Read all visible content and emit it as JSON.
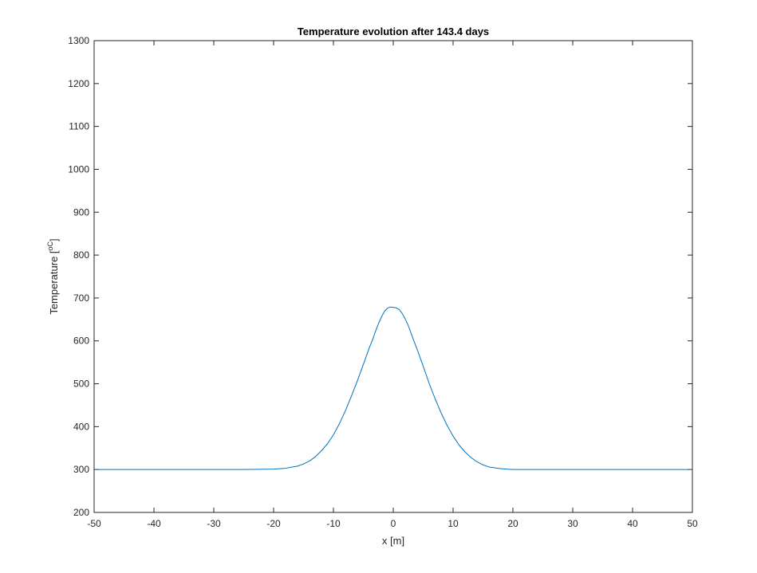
{
  "chart_data": {
    "type": "line",
    "title": "Temperature evolution after 143.4 days",
    "xlabel": "x [m]",
    "ylabel": "Temperature  [",
    "ylabel_unit_sup": "oC",
    "ylabel_close": "]",
    "xlim": [
      -50,
      50
    ],
    "ylim": [
      200,
      1300
    ],
    "xticks": [
      -50,
      -40,
      -30,
      -20,
      -10,
      0,
      10,
      20,
      30,
      40,
      50
    ],
    "yticks": [
      200,
      300,
      400,
      500,
      600,
      700,
      800,
      900,
      1000,
      1100,
      1200,
      1300
    ],
    "grid": false,
    "line_color": "#0072BD",
    "series": [
      {
        "x": [
          -50,
          -40,
          -30,
          -25,
          -20,
          -18,
          -16,
          -15,
          -14,
          -13,
          -12,
          -11,
          -10,
          -9,
          -8,
          -7,
          -6,
          -5,
          -4,
          -3.5,
          -3,
          -2.5,
          -2,
          -1.5,
          -1,
          -0.5,
          0,
          0.5,
          1,
          1.5,
          2,
          2.5,
          3,
          3.5,
          4,
          5,
          6,
          7,
          8,
          9,
          10,
          11,
          12,
          13,
          14,
          15,
          16,
          18,
          20,
          25,
          30,
          40,
          50
        ],
        "y": [
          300,
          300,
          300,
          300,
          301,
          303,
          308,
          313,
          320,
          330,
          344,
          360,
          381,
          407,
          437,
          471,
          507,
          545,
          584,
          601,
          621,
          639,
          655,
          668,
          676,
          679,
          678,
          677,
          673,
          664,
          651,
          636,
          617,
          598,
          580,
          541,
          501,
          465,
          432,
          403,
          378,
          357,
          341,
          328,
          318,
          311,
          306,
          302,
          300,
          300,
          300,
          300,
          300
        ]
      }
    ]
  }
}
